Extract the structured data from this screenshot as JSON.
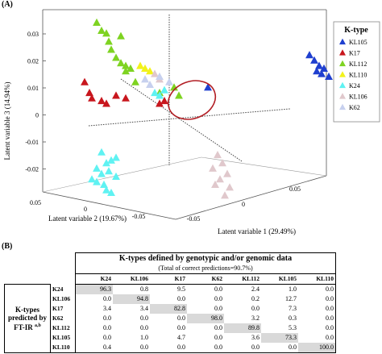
{
  "panel_a_label": "(A)",
  "panel_b_label": "(B)",
  "chart_data": [
    {
      "type": "scatter",
      "subtype": "3d-scatter",
      "xlabel": "Latent variable 1 (29.49%)",
      "ylabel": "Latent variable 2 (19.67%)",
      "zlabel": "Latent variable 3 (14.94%)",
      "z_ticks": [
        "0.03",
        "0.02",
        "0.01",
        "0",
        "-0.01",
        "-0.02"
      ],
      "y_ticks": [
        "0.05",
        "0",
        "-0.05"
      ],
      "x_ticks": [
        "-0.05",
        "0",
        "0.05"
      ],
      "legend": {
        "title": "K-type",
        "placement": "right",
        "entries": [
          {
            "name": "KL105",
            "color": "#1f3fcf"
          },
          {
            "name": "K17",
            "color": "#c8161d"
          },
          {
            "name": "KL112",
            "color": "#7ed321"
          },
          {
            "name": "KL110",
            "color": "#f2f21a"
          },
          {
            "name": "K24",
            "color": "#5ff2f2"
          },
          {
            "name": "KL106",
            "color": "#e0c8cc"
          },
          {
            "name": "K62",
            "color": "#c7d0ee"
          }
        ]
      },
      "series": [
        {
          "name": "KL105",
          "color": "#1f3fcf",
          "points": [
            [
              0.058,
              0.022
            ],
            [
              0.062,
              0.018
            ],
            [
              0.06,
              0.02
            ],
            [
              0.064,
              0.017
            ],
            [
              0.066,
              0.014
            ],
            [
              0.063,
              0.015
            ],
            [
              0.061,
              0.016
            ],
            [
              0.016,
              0.01
            ]
          ]
        },
        {
          "name": "K17",
          "color": "#c8161d",
          "points": [
            [
              -0.035,
              0.012
            ],
            [
              -0.033,
              0.008
            ],
            [
              -0.032,
              0.006
            ],
            [
              -0.028,
              0.005
            ],
            [
              -0.026,
              0.004
            ],
            [
              -0.022,
              0.007
            ],
            [
              -0.018,
              0.006
            ],
            [
              -0.004,
              0.004
            ],
            [
              -0.002,
              0.005
            ]
          ]
        },
        {
          "name": "KL112",
          "color": "#7ed321",
          "points": [
            [
              -0.03,
              0.034
            ],
            [
              -0.028,
              0.031
            ],
            [
              -0.026,
              0.03
            ],
            [
              -0.025,
              0.027
            ],
            [
              -0.024,
              0.024
            ],
            [
              -0.02,
              0.029
            ],
            [
              -0.022,
              0.021
            ],
            [
              -0.02,
              0.019
            ],
            [
              -0.018,
              0.018
            ],
            [
              -0.018,
              0.016
            ],
            [
              -0.016,
              0.017
            ],
            [
              -0.014,
              0.012
            ],
            [
              -0.004,
              0.008
            ],
            [
              0.002,
              0.01
            ],
            [
              0.004,
              0.007
            ]
          ]
        },
        {
          "name": "KL110",
          "color": "#f2f21a",
          "points": [
            [
              -0.012,
              0.018
            ],
            [
              -0.01,
              0.017
            ],
            [
              -0.008,
              0.016
            ]
          ]
        },
        {
          "name": "K24",
          "color": "#5ff2f2",
          "points": [
            [
              -0.002,
              0.009
            ],
            [
              -0.004,
              0.007
            ],
            [
              -0.006,
              0.008
            ],
            [
              -0.028,
              -0.014
            ],
            [
              -0.026,
              -0.018
            ],
            [
              -0.024,
              -0.017
            ],
            [
              -0.022,
              -0.016
            ],
            [
              -0.03,
              -0.02
            ],
            [
              -0.028,
              -0.022
            ],
            [
              -0.025,
              -0.021
            ],
            [
              -0.032,
              -0.024
            ],
            [
              -0.03,
              -0.025
            ],
            [
              -0.027,
              -0.026
            ],
            [
              -0.022,
              -0.023
            ],
            [
              -0.026,
              -0.028
            ],
            [
              -0.024,
              -0.029
            ]
          ]
        },
        {
          "name": "KL106",
          "color": "#e0c8cc",
          "points": [
            [
              -0.006,
              0.015
            ],
            [
              -0.004,
              0.013
            ],
            [
              0.02,
              -0.015
            ],
            [
              0.022,
              -0.018
            ],
            [
              0.018,
              -0.02
            ],
            [
              0.024,
              -0.022
            ],
            [
              0.021,
              -0.024
            ],
            [
              0.025,
              -0.027
            ],
            [
              0.019,
              -0.026
            ],
            [
              0.023,
              -0.03
            ]
          ]
        },
        {
          "name": "K62",
          "color": "#c7d0ee",
          "points": [
            [
              -0.01,
              0.013
            ],
            [
              -0.008,
              0.011
            ],
            [
              -0.004,
              0.014
            ],
            [
              0.0,
              0.012
            ]
          ]
        }
      ]
    },
    {
      "type": "table",
      "title": "K-types defined by genotypic and/or genomic data",
      "subtitle": "(Total of correct predictions=90.7%)",
      "row_title": "K-types predicted by FT-IR",
      "row_title_sup": "a,b",
      "columns": [
        "K24",
        "KL106",
        "K17",
        "K62",
        "KL112",
        "KL105",
        "KL110"
      ],
      "rows": [
        {
          "label": "K24",
          "values": [
            "96.3",
            "0.8",
            "9.5",
            "0.0",
            "2.4",
            "1.0",
            "0.0"
          ]
        },
        {
          "label": "KL106",
          "values": [
            "0.0",
            "94.8",
            "0.0",
            "0.0",
            "0.2",
            "12.7",
            "0.0"
          ]
        },
        {
          "label": "K17",
          "values": [
            "3.4",
            "3.4",
            "82.8",
            "0.0",
            "0.0",
            "7.3",
            "0.0"
          ]
        },
        {
          "label": "K62",
          "values": [
            "0.0",
            "0.0",
            "0.0",
            "98.0",
            "3.2",
            "0.3",
            "0.0"
          ]
        },
        {
          "label": "KL112",
          "values": [
            "0.0",
            "0.0",
            "0.0",
            "0.0",
            "89.8",
            "5.3",
            "0.0"
          ]
        },
        {
          "label": "KL105",
          "values": [
            "0.0",
            "1.0",
            "4.7",
            "0.0",
            "3.6",
            "73.3",
            "0.0"
          ]
        },
        {
          "label": "KL110",
          "values": [
            "0.4",
            "0.0",
            "0.0",
            "0.0",
            "0.0",
            "0.0",
            "100.0"
          ]
        }
      ]
    }
  ]
}
